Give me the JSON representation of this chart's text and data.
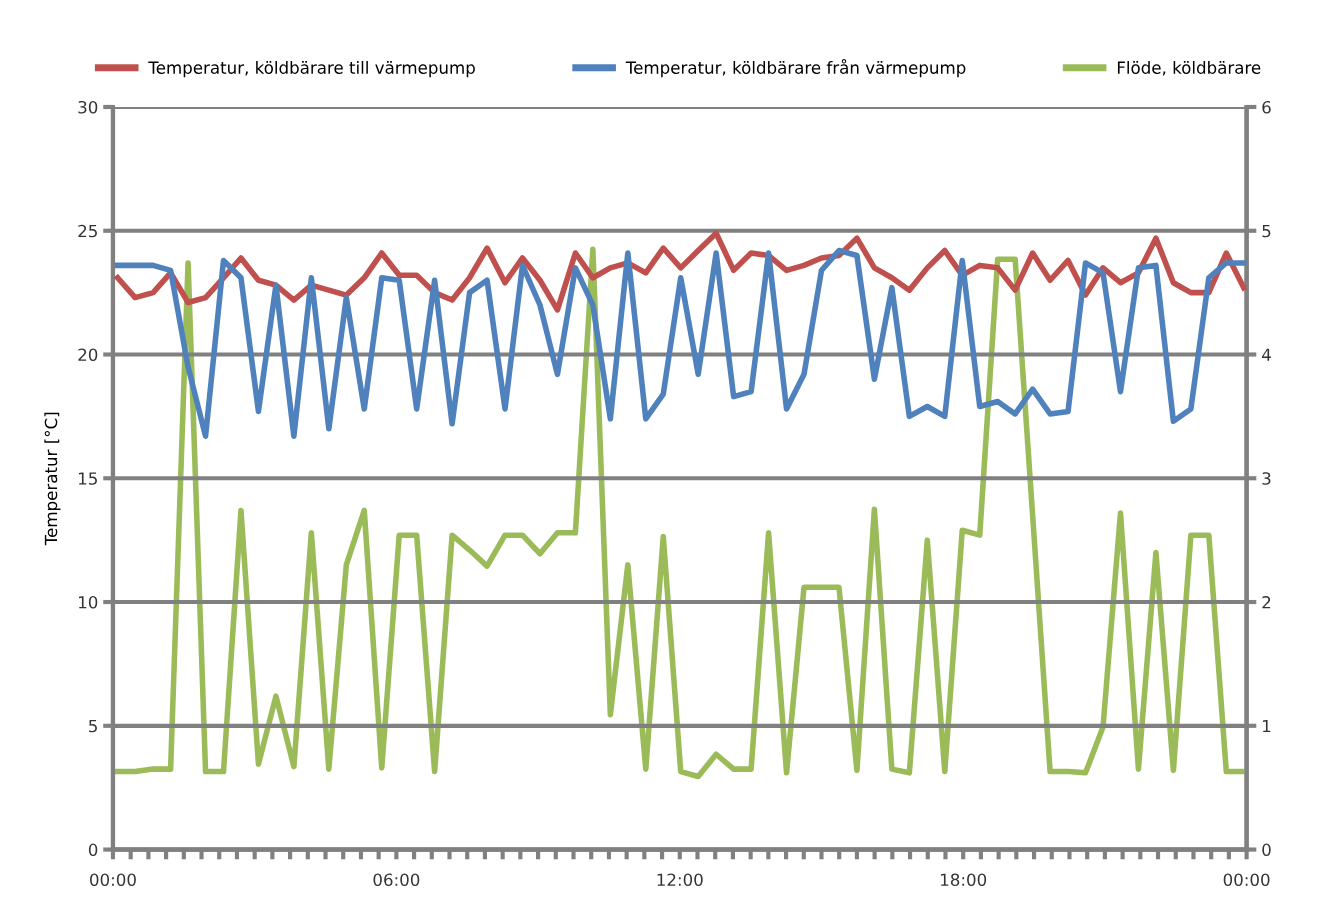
{
  "chart_data": {
    "type": "line",
    "ylabel": "Temperatur [°C]",
    "x": [
      0.1,
      0.47,
      0.85,
      1.22,
      1.59,
      1.96,
      2.34,
      2.71,
      3.08,
      3.45,
      3.83,
      4.2,
      4.57,
      4.94,
      5.32,
      5.69,
      6.06,
      6.43,
      6.81,
      7.18,
      7.55,
      7.92,
      8.3,
      8.67,
      9.04,
      9.41,
      9.79,
      10.16,
      10.53,
      10.9,
      11.28,
      11.65,
      12.02,
      12.39,
      12.77,
      13.14,
      13.51,
      13.88,
      14.26,
      14.63,
      15.0,
      15.37,
      15.75,
      16.12,
      16.49,
      16.86,
      17.24,
      17.61,
      17.98,
      18.35,
      18.73,
      19.1,
      19.47,
      19.84,
      20.22,
      20.59,
      20.96,
      21.33,
      21.71,
      22.08,
      22.45,
      22.82,
      23.2,
      23.57,
      23.94
    ],
    "series": [
      {
        "name": "Temperatur, köldbärare till värmepump",
        "color": "#c0504d",
        "values": [
          23.1,
          22.3,
          22.5,
          23.3,
          22.1,
          22.3,
          23.1,
          23.9,
          23.0,
          22.8,
          22.2,
          22.8,
          22.6,
          22.4,
          23.1,
          24.1,
          23.2,
          23.2,
          22.5,
          22.2,
          23.1,
          24.3,
          22.9,
          23.9,
          23.0,
          21.8,
          24.1,
          23.1,
          23.5,
          23.7,
          23.3,
          24.3,
          23.5,
          24.2,
          24.9,
          23.4,
          24.1,
          24.0,
          23.4,
          23.6,
          23.9,
          24.0,
          24.7,
          23.5,
          23.1,
          22.6,
          23.5,
          24.2,
          23.2,
          23.6,
          23.5,
          22.6,
          24.1,
          23.0,
          23.8,
          22.4,
          23.5,
          22.9,
          23.3,
          24.7,
          22.9,
          22.5,
          22.5,
          24.1,
          22.7
        ]
      },
      {
        "name": "Temperatur, köldbärare från värmepump",
        "color": "#4f81bd",
        "values": [
          23.6,
          23.6,
          23.6,
          23.4,
          19.5,
          16.7,
          23.8,
          23.1,
          17.7,
          22.8,
          16.7,
          23.1,
          17.0,
          22.3,
          17.8,
          23.1,
          23.0,
          17.8,
          23.0,
          17.2,
          22.5,
          23.0,
          17.8,
          23.6,
          22.0,
          19.2,
          23.5,
          22.0,
          17.4,
          24.1,
          17.4,
          18.4,
          23.1,
          19.2,
          24.1,
          18.3,
          18.5,
          24.1,
          17.8,
          19.2,
          23.4,
          24.2,
          24.0,
          19.0,
          22.7,
          17.5,
          17.9,
          17.5,
          23.8,
          17.9,
          18.1,
          17.6,
          18.6,
          17.6,
          17.7,
          23.7,
          23.3,
          18.5,
          23.5,
          23.6,
          17.3,
          17.8,
          23.1,
          23.7,
          23.7
        ]
      },
      {
        "name": "Flöde, köldbärare",
        "color": "#9bbb59",
        "axis": "y2",
        "values": [
          0.63,
          0.63,
          0.65,
          0.65,
          4.74,
          0.63,
          0.63,
          2.74,
          0.69,
          1.24,
          0.67,
          2.56,
          0.65,
          2.3,
          2.74,
          0.66,
          2.54,
          2.54,
          0.63,
          2.54,
          2.42,
          2.29,
          2.54,
          2.54,
          2.39,
          2.56,
          2.56,
          4.85,
          1.09,
          2.3,
          0.65,
          2.53,
          0.63,
          0.59,
          0.77,
          0.65,
          0.65,
          2.56,
          0.62,
          2.12,
          2.12,
          2.12,
          0.64,
          2.75,
          0.65,
          0.62,
          2.5,
          0.63,
          2.58,
          2.54,
          4.77,
          4.77,
          2.7,
          0.63,
          0.63,
          0.62,
          0.99,
          2.72,
          0.65,
          2.4,
          0.64,
          2.54,
          2.54,
          0.63,
          0.63
        ]
      }
    ],
    "xlim": [
      0,
      24
    ],
    "xticks": [
      {
        "value": 0,
        "label": "00:00"
      },
      {
        "value": 0.375,
        "label": null
      },
      {
        "value": 0.75,
        "label": null
      },
      {
        "value": 1.125,
        "label": null
      },
      {
        "value": 1.5,
        "label": null
      },
      {
        "value": 1.875,
        "label": null
      },
      {
        "value": 2.25,
        "label": null
      },
      {
        "value": 2.625,
        "label": null
      },
      {
        "value": 3,
        "label": null
      },
      {
        "value": 3.375,
        "label": null
      },
      {
        "value": 3.75,
        "label": null
      },
      {
        "value": 4.125,
        "label": null
      },
      {
        "value": 4.5,
        "label": null
      },
      {
        "value": 4.875,
        "label": null
      },
      {
        "value": 5.25,
        "label": null
      },
      {
        "value": 5.625,
        "label": null
      },
      {
        "value": 6,
        "label": "06:00"
      },
      {
        "value": 6.375,
        "label": null
      },
      {
        "value": 6.75,
        "label": null
      },
      {
        "value": 7.125,
        "label": null
      },
      {
        "value": 7.5,
        "label": null
      },
      {
        "value": 7.875,
        "label": null
      },
      {
        "value": 8.25,
        "label": null
      },
      {
        "value": 8.625,
        "label": null
      },
      {
        "value": 9,
        "label": null
      },
      {
        "value": 9.375,
        "label": null
      },
      {
        "value": 9.75,
        "label": null
      },
      {
        "value": 10.125,
        "label": null
      },
      {
        "value": 10.5,
        "label": null
      },
      {
        "value": 10.875,
        "label": null
      },
      {
        "value": 11.25,
        "label": null
      },
      {
        "value": 11.625,
        "label": null
      },
      {
        "value": 12,
        "label": "12:00"
      },
      {
        "value": 12.375,
        "label": null
      },
      {
        "value": 12.75,
        "label": null
      },
      {
        "value": 13.125,
        "label": null
      },
      {
        "value": 13.5,
        "label": null
      },
      {
        "value": 13.875,
        "label": null
      },
      {
        "value": 14.25,
        "label": null
      },
      {
        "value": 14.625,
        "label": null
      },
      {
        "value": 15,
        "label": null
      },
      {
        "value": 15.375,
        "label": null
      },
      {
        "value": 15.75,
        "label": null
      },
      {
        "value": 16.125,
        "label": null
      },
      {
        "value": 16.5,
        "label": null
      },
      {
        "value": 16.875,
        "label": null
      },
      {
        "value": 17.25,
        "label": null
      },
      {
        "value": 17.625,
        "label": null
      },
      {
        "value": 18,
        "label": "18:00"
      },
      {
        "value": 18.375,
        "label": null
      },
      {
        "value": 18.75,
        "label": null
      },
      {
        "value": 19.125,
        "label": null
      },
      {
        "value": 19.5,
        "label": null
      },
      {
        "value": 19.875,
        "label": null
      },
      {
        "value": 20.25,
        "label": null
      },
      {
        "value": 20.625,
        "label": null
      },
      {
        "value": 21,
        "label": null
      },
      {
        "value": 21.375,
        "label": null
      },
      {
        "value": 21.75,
        "label": null
      },
      {
        "value": 22.125,
        "label": null
      },
      {
        "value": 22.5,
        "label": null
      },
      {
        "value": 22.875,
        "label": null
      },
      {
        "value": 23.25,
        "label": null
      },
      {
        "value": 23.625,
        "label": null
      },
      {
        "value": 24,
        "label": "00:00"
      }
    ],
    "ylim": [
      0,
      30
    ],
    "yticks": [
      0,
      5,
      10,
      15,
      20,
      25,
      30
    ],
    "y2lim": [
      0,
      6
    ],
    "y2ticks": [
      0,
      1,
      2,
      3,
      4,
      5,
      6
    ],
    "grid": "y",
    "legend": "top",
    "marker": "none",
    "line_style": "solid"
  }
}
